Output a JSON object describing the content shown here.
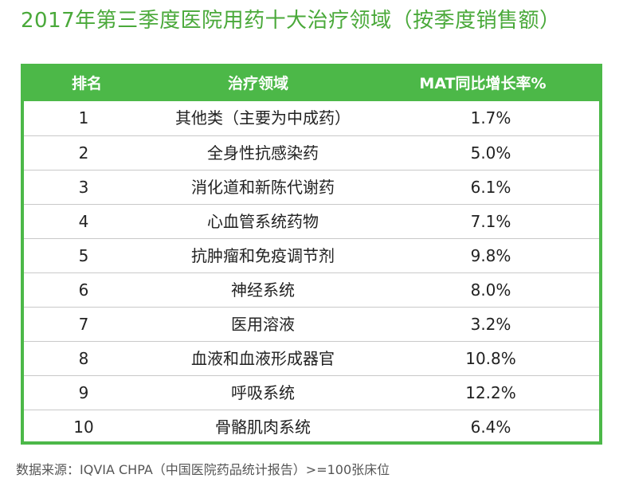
{
  "title": "2017年第三季度医院用药十大治疗领域（按季度销售额）",
  "table": {
    "headers": {
      "rank": "排名",
      "area": "治疗领域",
      "growth": "MAT同比增长率%"
    },
    "rows": [
      {
        "rank": "1",
        "area": "其他类（主要为中成药）",
        "growth": "1.7%"
      },
      {
        "rank": "2",
        "area": "全身性抗感染药",
        "growth": "5.0%"
      },
      {
        "rank": "3",
        "area": "消化道和新陈代谢药",
        "growth": "6.1%"
      },
      {
        "rank": "4",
        "area": "心血管系统药物",
        "growth": "7.1%"
      },
      {
        "rank": "5",
        "area": "抗肿瘤和免疫调节剂",
        "growth": "9.8%"
      },
      {
        "rank": "6",
        "area": "神经系统",
        "growth": "8.0%"
      },
      {
        "rank": "7",
        "area": "医用溶液",
        "growth": "3.2%"
      },
      {
        "rank": "8",
        "area": "血液和血液形成器官",
        "growth": "10.8%"
      },
      {
        "rank": "9",
        "area": "呼吸系统",
        "growth": "12.2%"
      },
      {
        "rank": "10",
        "area": "骨骼肌肉系统",
        "growth": "6.4%"
      }
    ]
  },
  "source": "数据来源：IQVIA CHPA（中国医院药品统计报告）>=100张床位",
  "colors": {
    "accent": "#4cb848",
    "title": "#4aa93a"
  }
}
